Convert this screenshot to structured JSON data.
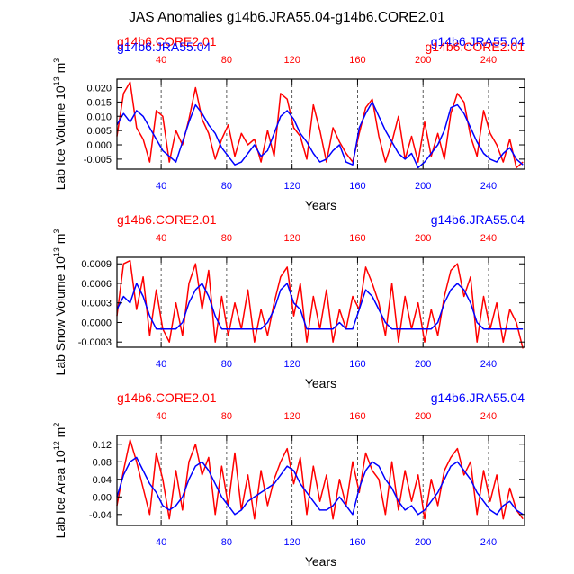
{
  "figure": {
    "title": "JAS Anomalies g14b6.JRA55.04-g14b6.CORE2.01",
    "colors": {
      "red": "#ff0000",
      "blue": "#0000ff",
      "axis": "#000000",
      "grid": "#333333"
    }
  },
  "chart_data": [
    {
      "type": "line",
      "ylabel": "Lab Ice Volume 10",
      "ylabel_exp": "13",
      "ylabel_unit": " m",
      "ylabel_unit_exp": "3",
      "xlabel": "Years",
      "xlim": [
        13,
        262
      ],
      "ylim": [
        -0.0085,
        0.023
      ],
      "yticks": [
        -0.005,
        0.0,
        0.005,
        0.01,
        0.015,
        0.02
      ],
      "ytick_labels": [
        "-0.005",
        "0.000",
        "0.005",
        "0.010",
        "0.015",
        "0.020"
      ],
      "xticks": [
        40,
        80,
        120,
        160,
        200,
        240
      ],
      "xtick_labels": [
        "40",
        "80",
        "120",
        "160",
        "200",
        "240"
      ],
      "top_left_label": "g14b6.CORE2.01",
      "top_right_label": "g14b6.JRA55.04",
      "overlap_left_label": "g14b6.JRA55.04",
      "overlap_right_label": "g14b6.CORE2.01",
      "series": [
        {
          "name": "g14b6.CORE2.01",
          "color": "#ff0000",
          "x": [
            13,
            17,
            21,
            25,
            29,
            33,
            37,
            41,
            45,
            49,
            53,
            57,
            61,
            65,
            69,
            73,
            77,
            81,
            85,
            89,
            93,
            97,
            101,
            105,
            109,
            113,
            117,
            121,
            125,
            129,
            133,
            137,
            141,
            145,
            149,
            153,
            157,
            161,
            165,
            169,
            173,
            177,
            181,
            185,
            189,
            193,
            197,
            201,
            205,
            209,
            213,
            217,
            221,
            225,
            229,
            233,
            237,
            241,
            245,
            249,
            253,
            257,
            261
          ],
          "y": [
            0.003,
            0.018,
            0.022,
            0.006,
            0.002,
            -0.006,
            0.012,
            0.01,
            -0.006,
            0.005,
            0.0,
            0.009,
            0.02,
            0.009,
            0.004,
            -0.005,
            0.002,
            0.007,
            -0.004,
            0.004,
            0.0,
            0.002,
            -0.006,
            0.005,
            -0.004,
            0.018,
            0.016,
            0.006,
            0.003,
            -0.005,
            0.014,
            0.005,
            -0.006,
            0.006,
            0.001,
            -0.003,
            -0.006,
            0.004,
            0.013,
            0.016,
            0.003,
            -0.006,
            0.001,
            0.01,
            -0.005,
            0.003,
            -0.006,
            0.008,
            -0.004,
            0.004,
            -0.005,
            0.011,
            0.018,
            0.015,
            0.003,
            -0.004,
            0.012,
            0.004,
            0.0,
            -0.006,
            0.002,
            -0.008,
            -0.006
          ]
        },
        {
          "name": "g14b6.JRA55.04",
          "color": "#0000ff",
          "x": [
            13,
            17,
            21,
            25,
            29,
            33,
            37,
            41,
            45,
            49,
            53,
            57,
            61,
            65,
            69,
            73,
            77,
            81,
            85,
            89,
            93,
            97,
            101,
            105,
            109,
            113,
            117,
            121,
            125,
            129,
            133,
            137,
            141,
            145,
            149,
            153,
            157,
            161,
            165,
            169,
            173,
            177,
            181,
            185,
            189,
            193,
            197,
            201,
            205,
            209,
            213,
            217,
            221,
            225,
            229,
            233,
            237,
            241,
            245,
            249,
            253,
            257,
            261
          ],
          "y": [
            0.007,
            0.011,
            0.008,
            0.012,
            0.01,
            0.006,
            0.002,
            -0.002,
            -0.004,
            -0.006,
            0.001,
            0.008,
            0.014,
            0.011,
            0.007,
            0.004,
            -0.001,
            -0.004,
            -0.007,
            -0.006,
            -0.003,
            0.0,
            -0.004,
            -0.002,
            0.004,
            0.01,
            0.012,
            0.009,
            0.004,
            0.001,
            -0.003,
            -0.006,
            -0.005,
            -0.002,
            0.0,
            -0.006,
            -0.007,
            0.006,
            0.011,
            0.015,
            0.01,
            0.005,
            0.001,
            -0.003,
            -0.005,
            -0.003,
            -0.008,
            -0.006,
            -0.003,
            0.0,
            0.005,
            0.013,
            0.014,
            0.011,
            0.006,
            0.001,
            -0.003,
            -0.005,
            -0.006,
            -0.003,
            -0.001,
            -0.005,
            -0.007
          ]
        }
      ]
    },
    {
      "type": "line",
      "ylabel": "Lab Snow Volume 10",
      "ylabel_exp": "13",
      "ylabel_unit": " m",
      "ylabel_unit_exp": "3",
      "xlabel": "Years",
      "xlim": [
        13,
        262
      ],
      "ylim": [
        -0.00038,
        0.001
      ],
      "yticks": [
        -0.0003,
        0.0,
        0.0003,
        0.0006,
        0.0009
      ],
      "ytick_labels": [
        "-0.0003",
        "0.0000",
        "0.0003",
        "0.0006",
        "0.0009"
      ],
      "xticks": [
        40,
        80,
        120,
        160,
        200,
        240
      ],
      "xtick_labels": [
        "40",
        "80",
        "120",
        "160",
        "200",
        "240"
      ],
      "top_left_label": "g14b6.CORE2.01",
      "top_right_label": "g14b6.JRA55.04",
      "series": [
        {
          "name": "g14b6.CORE2.01",
          "color": "#ff0000",
          "x": [
            13,
            17,
            21,
            25,
            29,
            33,
            37,
            41,
            45,
            49,
            53,
            57,
            61,
            65,
            69,
            73,
            77,
            81,
            85,
            89,
            93,
            97,
            101,
            105,
            109,
            113,
            117,
            121,
            125,
            129,
            133,
            137,
            141,
            145,
            149,
            153,
            157,
            161,
            165,
            169,
            173,
            177,
            181,
            185,
            189,
            193,
            197,
            201,
            205,
            209,
            213,
            217,
            221,
            225,
            229,
            233,
            237,
            241,
            245,
            249,
            253,
            257,
            261
          ],
          "y": [
            0.0001,
            0.0009,
            0.00095,
            0.0002,
            0.0007,
            -0.0002,
            0.0005,
            -0.0001,
            -0.0003,
            0.0003,
            -0.0002,
            0.0006,
            0.0009,
            0.0002,
            0.0008,
            -0.0003,
            0.0004,
            -0.0002,
            0.0003,
            -0.0001,
            0.0005,
            -0.0003,
            0.0002,
            -0.0002,
            0.0003,
            0.0007,
            0.00085,
            0.0001,
            0.0006,
            -0.0003,
            0.0004,
            -0.0001,
            0.0005,
            -0.0003,
            0.0002,
            -0.0001,
            0.0004,
            0.0002,
            0.00085,
            0.0006,
            0.0003,
            -0.0002,
            0.0006,
            -0.0003,
            0.0004,
            -0.0001,
            0.0003,
            -0.0003,
            0.0002,
            -0.0002,
            0.0004,
            0.0008,
            0.0009,
            0.0004,
            0.0007,
            -0.0003,
            0.0004,
            -0.0001,
            0.0003,
            -0.0003,
            0.0002,
            0.0,
            -0.0004
          ]
        },
        {
          "name": "g14b6.JRA55.04",
          "color": "#0000ff",
          "x": [
            13,
            17,
            21,
            25,
            29,
            33,
            37,
            41,
            45,
            49,
            53,
            57,
            61,
            65,
            69,
            73,
            77,
            81,
            85,
            89,
            93,
            97,
            101,
            105,
            109,
            113,
            117,
            121,
            125,
            129,
            133,
            137,
            141,
            145,
            149,
            153,
            157,
            161,
            165,
            169,
            173,
            177,
            181,
            185,
            189,
            193,
            197,
            201,
            205,
            209,
            213,
            217,
            221,
            225,
            229,
            233,
            237,
            241,
            245,
            249,
            253,
            257,
            261
          ],
          "y": [
            0.0002,
            0.0004,
            0.0003,
            0.0006,
            0.0004,
            0.0001,
            -0.0001,
            -0.0001,
            -0.0001,
            -0.0001,
            0.0,
            0.0003,
            0.0005,
            0.0006,
            0.0004,
            0.0001,
            -0.0001,
            -0.0001,
            -0.0001,
            -0.0001,
            -0.0001,
            -0.0001,
            -0.0001,
            0.0,
            0.0002,
            0.0005,
            0.0006,
            0.0003,
            0.0002,
            -0.0001,
            -0.0001,
            -0.0001,
            -0.0001,
            -0.0001,
            0.0,
            -0.0001,
            -0.0001,
            0.0002,
            0.0005,
            0.0004,
            0.0002,
            0.0,
            -0.0001,
            -0.0001,
            -0.0001,
            -0.0001,
            -0.0001,
            -0.0001,
            -0.0001,
            0.0,
            0.0003,
            0.0005,
            0.0006,
            0.0005,
            0.0003,
            0.0,
            -0.0001,
            -0.0001,
            -0.0001,
            -0.0001,
            -0.0001,
            -0.0001,
            -0.0001
          ]
        }
      ]
    },
    {
      "type": "line",
      "ylabel": "Lab Ice Area 10",
      "ylabel_exp": "12",
      "ylabel_unit": " m",
      "ylabel_unit_exp": "2",
      "xlabel": "Years",
      "xlim": [
        13,
        262
      ],
      "ylim": [
        -0.065,
        0.14
      ],
      "yticks": [
        -0.04,
        0.0,
        0.04,
        0.08,
        0.12
      ],
      "ytick_labels": [
        "-0.04",
        "0.00",
        "0.04",
        "0.08",
        "0.12"
      ],
      "xticks": [
        40,
        80,
        120,
        160,
        200,
        240
      ],
      "xtick_labels": [
        "40",
        "80",
        "120",
        "160",
        "200",
        "240"
      ],
      "top_left_label": "g14b6.CORE2.01",
      "top_right_label": "g14b6.JRA55.04",
      "series": [
        {
          "name": "g14b6.CORE2.01",
          "color": "#ff0000",
          "x": [
            13,
            17,
            21,
            25,
            29,
            33,
            37,
            41,
            45,
            49,
            53,
            57,
            61,
            65,
            69,
            73,
            77,
            81,
            85,
            89,
            93,
            97,
            101,
            105,
            109,
            113,
            117,
            121,
            125,
            129,
            133,
            137,
            141,
            145,
            149,
            153,
            157,
            161,
            165,
            169,
            173,
            177,
            181,
            185,
            189,
            193,
            197,
            201,
            205,
            209,
            213,
            217,
            221,
            225,
            229,
            233,
            237,
            241,
            245,
            249,
            253,
            257,
            261
          ],
          "y": [
            -0.02,
            0.06,
            0.13,
            0.08,
            0.02,
            -0.04,
            0.1,
            0.04,
            -0.05,
            0.06,
            -0.03,
            0.08,
            0.12,
            0.05,
            0.09,
            -0.04,
            0.07,
            -0.02,
            0.1,
            -0.03,
            0.05,
            -0.05,
            0.06,
            -0.02,
            0.04,
            0.08,
            0.11,
            0.03,
            0.09,
            -0.04,
            0.07,
            -0.01,
            0.05,
            -0.05,
            0.04,
            -0.02,
            0.08,
            0.01,
            0.1,
            0.06,
            0.04,
            -0.04,
            0.08,
            -0.03,
            0.06,
            -0.01,
            0.05,
            -0.05,
            0.04,
            -0.02,
            0.06,
            0.09,
            0.11,
            0.05,
            0.08,
            -0.04,
            0.06,
            -0.01,
            0.05,
            -0.05,
            0.02,
            -0.03,
            -0.05
          ]
        },
        {
          "name": "g14b6.JRA55.04",
          "color": "#0000ff",
          "x": [
            13,
            17,
            21,
            25,
            29,
            33,
            37,
            41,
            45,
            49,
            53,
            57,
            61,
            65,
            69,
            73,
            77,
            81,
            85,
            89,
            93,
            97,
            101,
            105,
            109,
            113,
            117,
            121,
            125,
            129,
            133,
            137,
            141,
            145,
            149,
            153,
            157,
            161,
            165,
            169,
            173,
            177,
            181,
            185,
            189,
            193,
            197,
            201,
            205,
            209,
            213,
            217,
            221,
            225,
            229,
            233,
            237,
            241,
            245,
            249,
            253,
            257,
            261
          ],
          "y": [
            0.0,
            0.05,
            0.08,
            0.09,
            0.06,
            0.03,
            0.01,
            -0.02,
            -0.03,
            -0.02,
            0.0,
            0.04,
            0.07,
            0.08,
            0.06,
            0.03,
            0.0,
            -0.02,
            -0.04,
            -0.03,
            -0.01,
            0.0,
            0.01,
            0.02,
            0.03,
            0.05,
            0.07,
            0.06,
            0.03,
            0.01,
            -0.01,
            -0.03,
            -0.03,
            -0.02,
            0.0,
            -0.02,
            -0.04,
            0.02,
            0.06,
            0.08,
            0.07,
            0.04,
            0.02,
            -0.01,
            -0.03,
            -0.02,
            -0.04,
            -0.03,
            -0.01,
            0.01,
            0.04,
            0.07,
            0.08,
            0.06,
            0.04,
            0.01,
            -0.01,
            -0.03,
            -0.04,
            -0.02,
            -0.01,
            -0.03,
            -0.04
          ]
        }
      ]
    }
  ]
}
